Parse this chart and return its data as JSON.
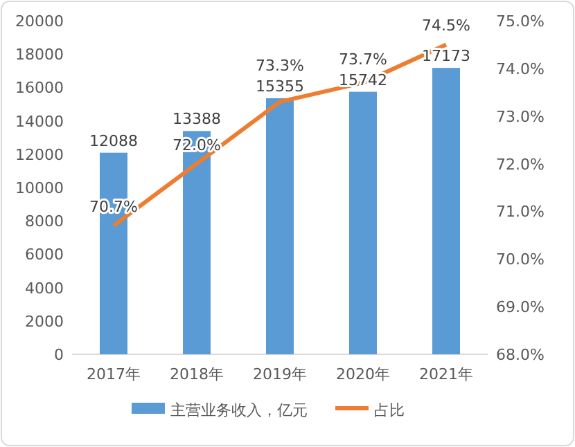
{
  "chart_data": {
    "type": "bar",
    "categories": [
      "2017年",
      "2018年",
      "2019年",
      "2020年",
      "2021年"
    ],
    "series": [
      {
        "name": "主营业务收入，亿元",
        "color": "#5b9bd5",
        "values": [
          12088,
          13388,
          15355,
          15742,
          17173
        ],
        "value_labels": [
          "12088",
          "13388",
          "15355",
          "15742",
          "17173"
        ]
      },
      {
        "name": "占比",
        "type": "line",
        "axis": "y2",
        "color": "#ed7d31",
        "values": [
          70.7,
          72.0,
          73.3,
          73.7,
          74.5
        ],
        "value_labels": [
          "70.7%",
          "72.0%",
          "73.3%",
          "73.7%",
          "74.5%"
        ]
      }
    ],
    "ylim": [
      0,
      20000
    ],
    "yticks": [
      0,
      2000,
      4000,
      6000,
      8000,
      10000,
      12000,
      14000,
      16000,
      18000,
      20000
    ],
    "y2lim": [
      68,
      75
    ],
    "y2ticks": [
      {
        "value": 68,
        "label": "68.0%"
      },
      {
        "value": 69,
        "label": "69.0%"
      },
      {
        "value": 70,
        "label": "70.0%"
      },
      {
        "value": 71,
        "label": "71.0%"
      },
      {
        "value": 72,
        "label": "72.0%"
      },
      {
        "value": 73,
        "label": "73.0%"
      },
      {
        "value": 74,
        "label": "74.0%"
      },
      {
        "value": 75,
        "label": "75.0%"
      }
    ],
    "legend": "bottom",
    "grid": false
  }
}
